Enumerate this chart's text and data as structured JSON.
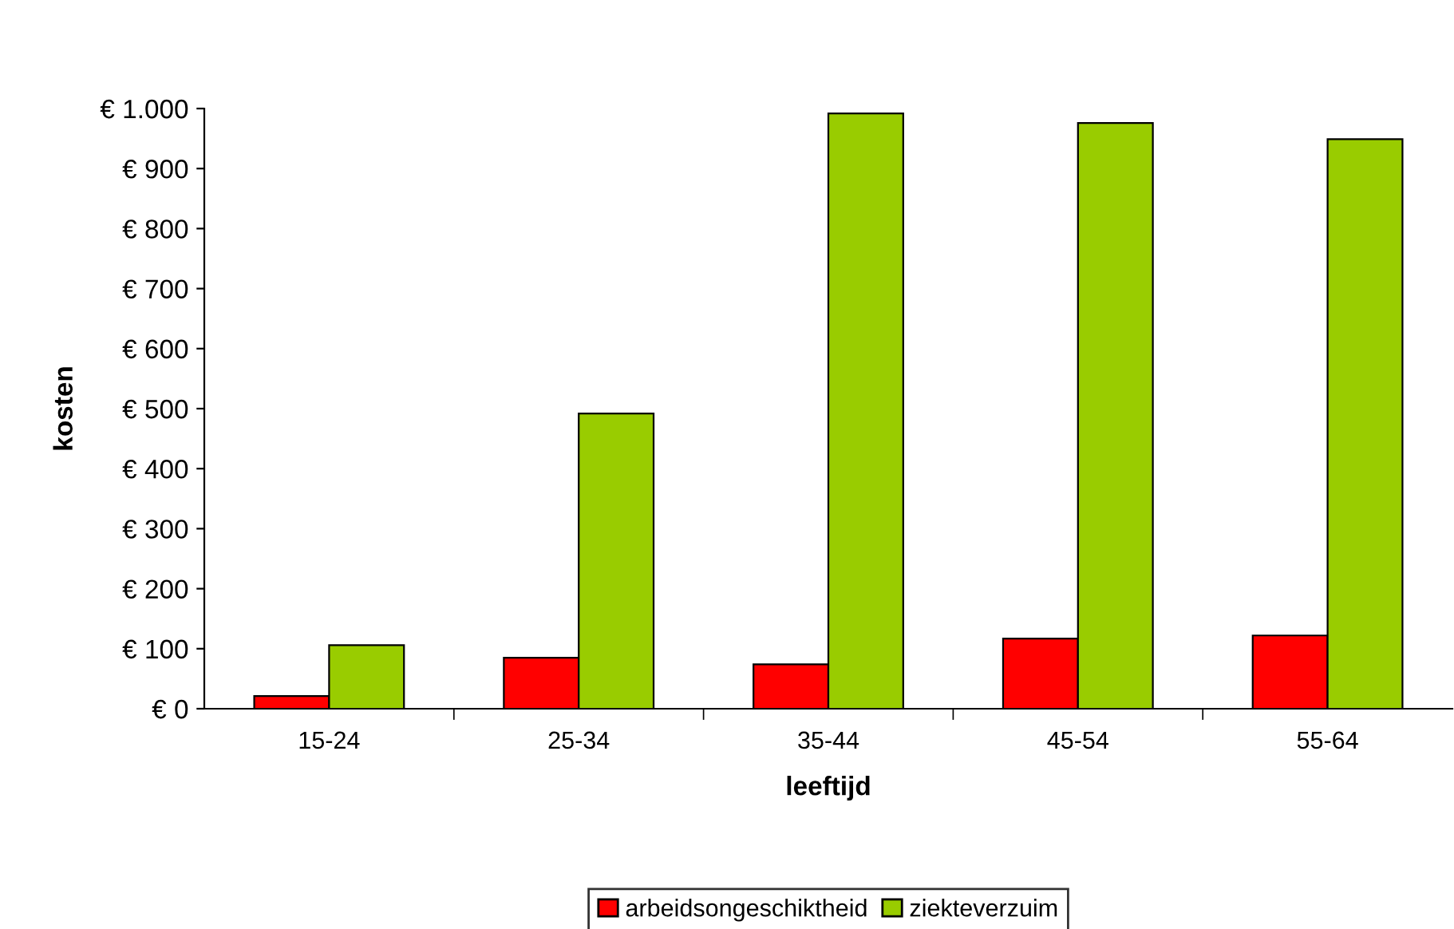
{
  "chart_data": {
    "type": "bar",
    "xlabel": "leeftijd",
    "ylabel": "kosten",
    "categories": [
      "15-24",
      "25-34",
      "35-44",
      "45-54",
      "55-64"
    ],
    "series": [
      {
        "name": "arbeidsongeschiktheid",
        "color": "#ff0000",
        "values": [
          21,
          85,
          74,
          117,
          122
        ]
      },
      {
        "name": "ziekteverzuim",
        "color": "#99cc00",
        "values": [
          106,
          492,
          992,
          976,
          949
        ]
      }
    ],
    "ylim": [
      0,
      1000
    ],
    "yticks": [
      {
        "value": 0,
        "label": "€ 0"
      },
      {
        "value": 100,
        "label": "€ 100"
      },
      {
        "value": 200,
        "label": "€ 200"
      },
      {
        "value": 300,
        "label": "€ 300"
      },
      {
        "value": 400,
        "label": "€ 400"
      },
      {
        "value": 500,
        "label": "€ 500"
      },
      {
        "value": 600,
        "label": "€ 600"
      },
      {
        "value": 700,
        "label": "€ 700"
      },
      {
        "value": 800,
        "label": "€ 800"
      },
      {
        "value": 900,
        "label": "€ 900"
      },
      {
        "value": 1000,
        "label": "€ 1.000"
      }
    ],
    "grid": false,
    "legend": "bottom"
  }
}
